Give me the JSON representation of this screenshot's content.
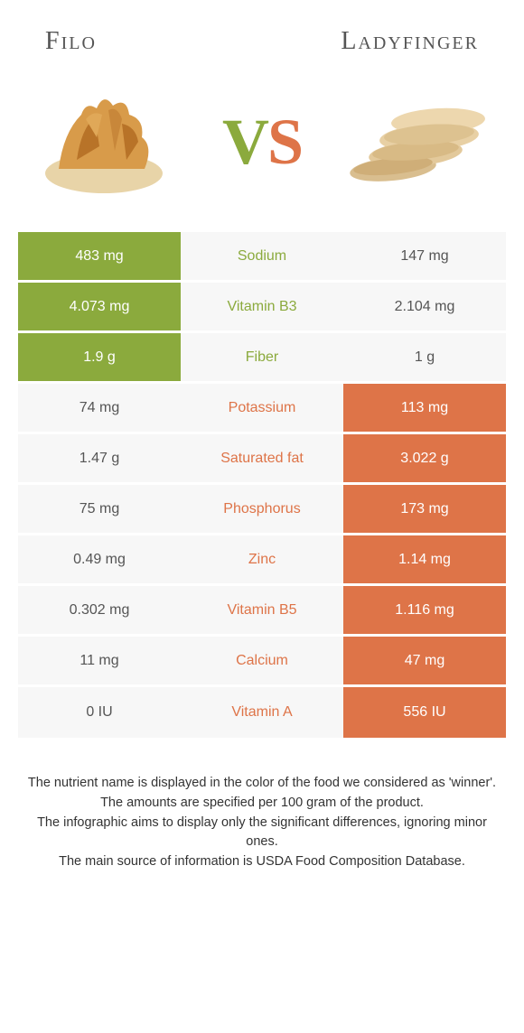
{
  "header": {
    "left_title": "Filo",
    "right_title": "Ladyfinger"
  },
  "vs": {
    "v": "V",
    "s": "S"
  },
  "colors": {
    "green": "#8baa3d",
    "orange": "#de7448",
    "row_bg": "#f7f7f7",
    "page_bg": "#ffffff"
  },
  "rows": [
    {
      "left": "483 mg",
      "label": "Sodium",
      "right": "147 mg",
      "winner": "left"
    },
    {
      "left": "4.073 mg",
      "label": "Vitamin B3",
      "right": "2.104 mg",
      "winner": "left"
    },
    {
      "left": "1.9 g",
      "label": "Fiber",
      "right": "1 g",
      "winner": "left"
    },
    {
      "left": "74 mg",
      "label": "Potassium",
      "right": "113 mg",
      "winner": "right"
    },
    {
      "left": "1.47 g",
      "label": "Saturated fat",
      "right": "3.022 g",
      "winner": "right"
    },
    {
      "left": "75 mg",
      "label": "Phosphorus",
      "right": "173 mg",
      "winner": "right"
    },
    {
      "left": "0.49 mg",
      "label": "Zinc",
      "right": "1.14 mg",
      "winner": "right"
    },
    {
      "left": "0.302 mg",
      "label": "Vitamin B5",
      "right": "1.116 mg",
      "winner": "right"
    },
    {
      "left": "11 mg",
      "label": "Calcium",
      "right": "47 mg",
      "winner": "right"
    },
    {
      "left": "0 IU",
      "label": "Vitamin A",
      "right": "556 IU",
      "winner": "right"
    }
  ],
  "footer": {
    "line1": "The nutrient name is displayed in the color of the food we considered as 'winner'.",
    "line2": "The amounts are specified per 100 gram of the product.",
    "line3": "The infographic aims to display only the significant differences, ignoring minor ones.",
    "line4": "The main source of information is USDA Food Composition Database."
  }
}
